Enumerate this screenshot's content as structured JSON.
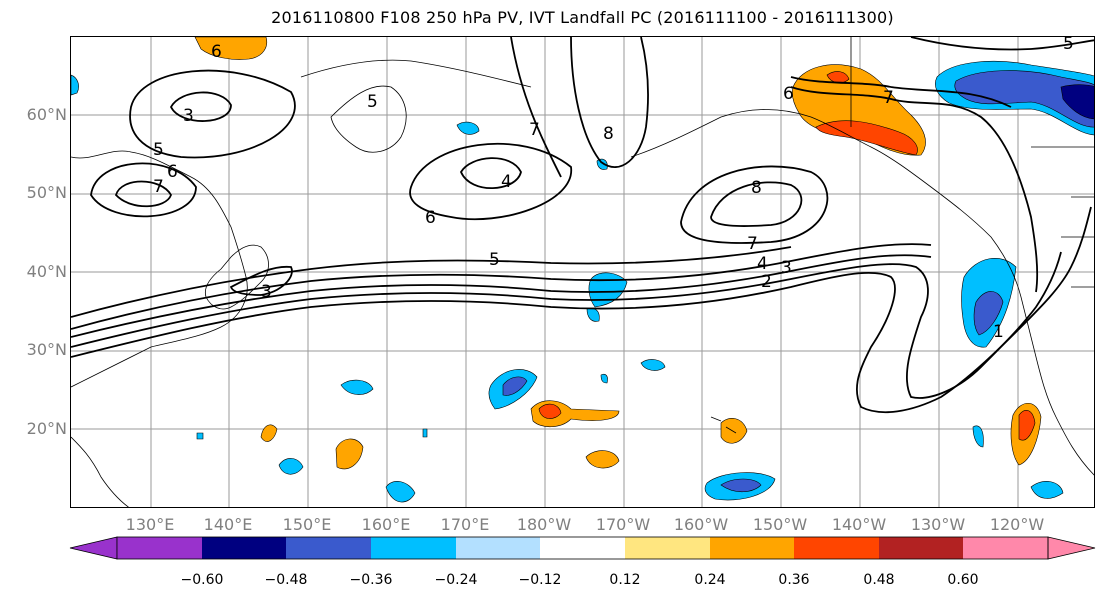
{
  "title": "2016110800 F108 250 hPa PV, IVT Landfall PC (2016111100 - 2016111300)",
  "lat_labels": [
    "60°N",
    "50°N",
    "40°N",
    "30°N",
    "20°N"
  ],
  "lon_labels": [
    "130°E",
    "140°E",
    "150°E",
    "160°E",
    "170°E",
    "180°W",
    "170°W",
    "160°W",
    "150°W",
    "140°W",
    "130°W",
    "120°W"
  ],
  "contour_labels": {
    "c6_nw": "6",
    "c3_nw": "3",
    "c5_w": "5",
    "c6_w": "6",
    "c7_w": "7",
    "c5_kam": "5",
    "c7_n": "7",
    "c8_n": "8",
    "c4_ber": "4",
    "c6_mid": "6",
    "c5_jet": "5",
    "c3_jap": "3",
    "c8_e": "8",
    "c7_e": "7",
    "c4_e": "4",
    "c3_e": "3",
    "c2_e": "2",
    "c6_ak": "6",
    "c7_ak": "7",
    "c1_ca": "1",
    "c5_ne": "5"
  },
  "colorbar": {
    "colors": [
      "#9932cc",
      "#000080",
      "#3a5acd",
      "#00bfff",
      "#b3e0ff",
      "#ffffff",
      "#ffe680",
      "#ffa500",
      "#ff4500",
      "#b22222",
      "#ff88aa"
    ],
    "ticks": [
      "−0.60",
      "−0.48",
      "−0.36",
      "−0.24",
      "−0.12",
      "0.12",
      "0.24",
      "0.36",
      "0.48",
      "0.60"
    ]
  }
}
